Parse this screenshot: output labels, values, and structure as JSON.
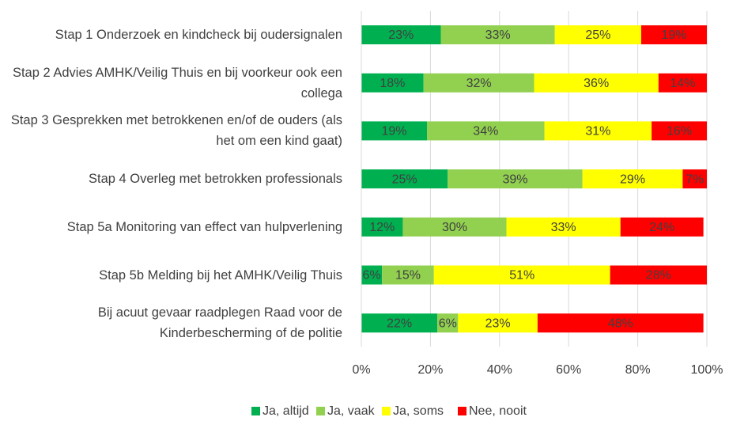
{
  "chart_data": {
    "type": "stacked_barh",
    "categories": [
      "Stap 1 Onderzoek en kindcheck bij oudersignalen",
      "Stap 2 Advies AMHK/Veilig Thuis en bij voorkeur ook een collega",
      "Stap 3 Gesprekken met betrokkenen en/of de ouders (als het om een kind gaat)",
      "Stap 4 Overleg met betrokken professionals",
      "Stap 5a Monitoring van effect van hulpverlening",
      "Stap 5b Melding bij het AMHK/Veilig Thuis",
      "Bij acuut gevaar raadplegen Raad voor de Kinderbescherming of de politie"
    ],
    "series": [
      {
        "name": "Ja, altijd",
        "color": "#00b050",
        "values": [
          23,
          18,
          19,
          25,
          12,
          6,
          22
        ],
        "value_labels": [
          "23%",
          "18%",
          "19%",
          "25%",
          "12%",
          "6%",
          "22%"
        ]
      },
      {
        "name": "Ja, vaak",
        "color": "#92d050",
        "values": [
          33,
          32,
          34,
          39,
          30,
          15,
          6
        ],
        "value_labels": [
          "33%",
          "32%",
          "34%",
          "39%",
          "30%",
          "15%",
          "6%"
        ]
      },
      {
        "name": "Ja, soms",
        "color": "#ffff00",
        "values": [
          25,
          36,
          31,
          29,
          33,
          51,
          23
        ],
        "value_labels": [
          "25%",
          "36%",
          "31%",
          "29%",
          "33%",
          "51%",
          "23%"
        ]
      },
      {
        "name": "Nee, nooit",
        "color": "#ff0000",
        "values": [
          19,
          14,
          16,
          7,
          24,
          28,
          48
        ],
        "value_labels": [
          "19%",
          "14%",
          "16%",
          "7%",
          "24%",
          "28%",
          "48%"
        ]
      }
    ],
    "xlim": [
      0,
      100
    ],
    "xticks": [
      {
        "value": 0,
        "label": "0%"
      },
      {
        "value": 20,
        "label": "20%"
      },
      {
        "value": 40,
        "label": "40%"
      },
      {
        "value": 60,
        "label": "60%"
      },
      {
        "value": 80,
        "label": "80%"
      },
      {
        "value": 100,
        "label": "100%"
      }
    ],
    "grid": true,
    "legend": "bottom"
  }
}
